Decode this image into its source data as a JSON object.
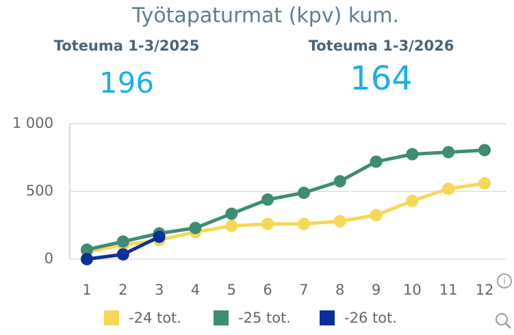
{
  "chart_data": {
    "type": "line",
    "title": "Työtapaturmat (kpv) kum.",
    "kpis": [
      {
        "label": "Toteuma 1-3/2025",
        "value": 196
      },
      {
        "label": "Toteuma 1-3/2026",
        "value": 164
      }
    ],
    "categories": [
      "1",
      "2",
      "3",
      "4",
      "5",
      "6",
      "7",
      "8",
      "9",
      "10",
      "11",
      "12"
    ],
    "series": [
      {
        "name": "-24 tot.",
        "color": "#f5d858",
        "values": [
          55,
          105,
          140,
          200,
          245,
          260,
          260,
          280,
          325,
          430,
          520,
          560
        ]
      },
      {
        "name": "-25 tot.",
        "color": "#3d8c74",
        "values": [
          70,
          130,
          190,
          230,
          335,
          440,
          490,
          575,
          720,
          775,
          790,
          805
        ]
      },
      {
        "name": "-26 tot.",
        "color": "#0a2f9e",
        "values": [
          0,
          35,
          165,
          null,
          null,
          null,
          null,
          null,
          null,
          null,
          null,
          null
        ]
      }
    ],
    "ylim": [
      0,
      1000
    ],
    "yticks": [
      0,
      500,
      {
        "value": 1000,
        "label": "1 000"
      }
    ],
    "grid": true
  }
}
